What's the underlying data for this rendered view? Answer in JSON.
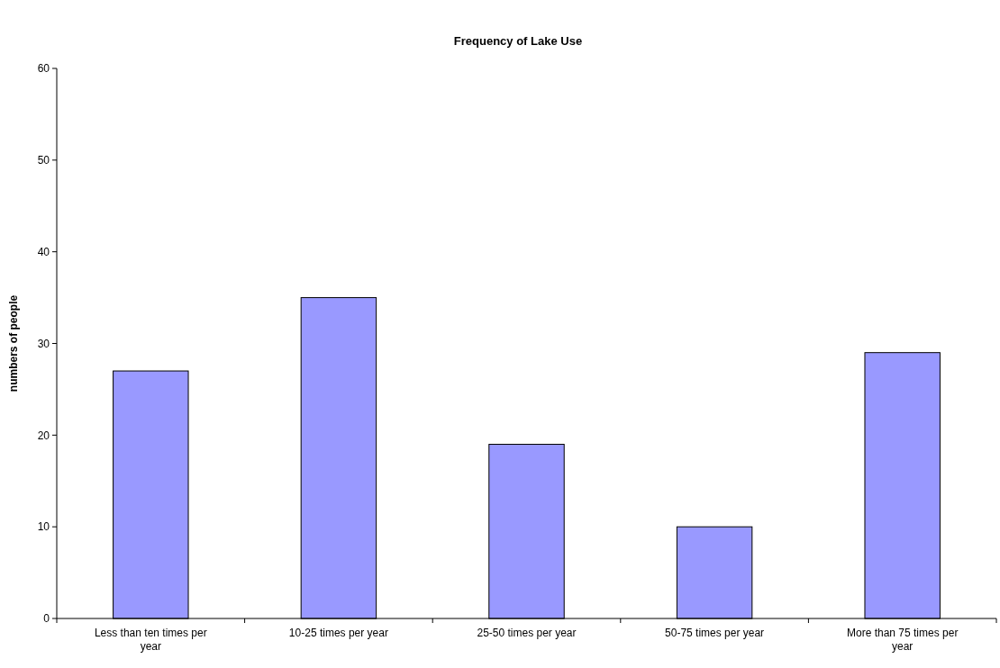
{
  "chart_data": {
    "type": "bar",
    "title": "Frequency of Lake Use",
    "ylabel": "numbers of people",
    "categories": [
      "Less than ten times per year",
      "10-25 times per year",
      "25-50 times per year",
      "50-75 times per year",
      "More than 75 times per year"
    ],
    "values": [
      27,
      35,
      19,
      10,
      29
    ],
    "color": "#9999ff",
    "ylim": [
      0,
      60
    ],
    "yticks": [
      0,
      10,
      20,
      30,
      40,
      50,
      60
    ],
    "grid": false
  }
}
